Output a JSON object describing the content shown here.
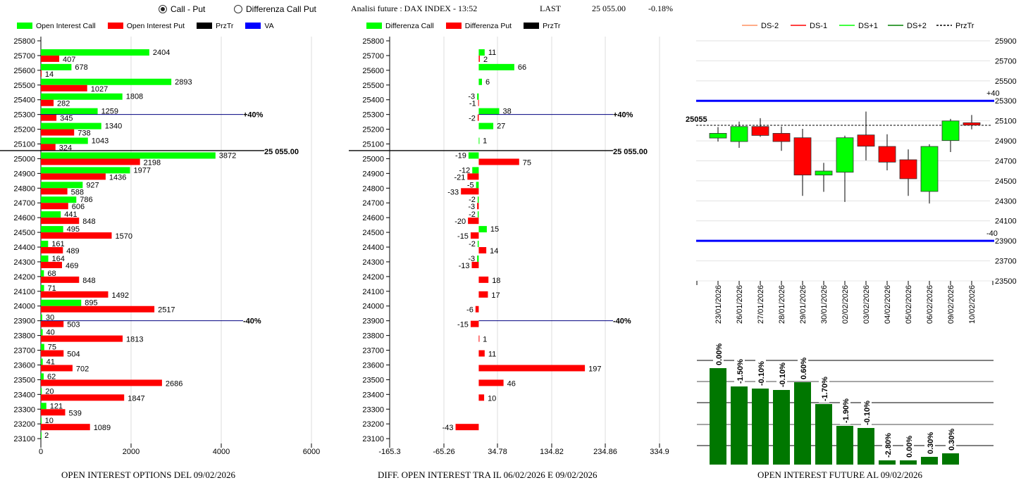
{
  "header": {
    "radio_call_put": "Call - Put",
    "radio_diff": "Differenza Call Put",
    "analysis": "Analisi future : DAX INDEX - 13:52",
    "last_label": "LAST",
    "last_value": "25 055.00",
    "change": "-0.18%"
  },
  "colors": {
    "call": "#00ff00",
    "put": "#ff0000",
    "przTr": "#000000",
    "va": "#0000ff",
    "future_bar": "#007700",
    "ds2": "#ff9060",
    "ds1": "#ff0000",
    "dsp1": "#00ff00",
    "dsp2": "#008000"
  },
  "legend_left": [
    "Open Interest Call",
    "Open Interest Put",
    "PrzTr",
    "VA"
  ],
  "legend_mid": [
    "Differenza Call",
    "Differenza Put",
    "PrzTr"
  ],
  "legend_right": [
    "DS-2",
    "DS-1",
    "DS+1",
    "DS+2",
    "PrzTr"
  ],
  "chart_data": [
    {
      "type": "bar",
      "orientation": "horizontal",
      "title": "OPEN INTEREST OPTIONS DEL 09/02/2026",
      "strikes": [
        25800,
        25700,
        25600,
        25500,
        25400,
        25300,
        25200,
        25100,
        25000,
        24900,
        24800,
        24700,
        24600,
        24500,
        24400,
        24300,
        24200,
        24100,
        24000,
        23900,
        23800,
        23700,
        23600,
        23500,
        23400,
        23300,
        23200,
        23100
      ],
      "series": [
        {
          "name": "Open Interest Call",
          "values": [
            null,
            2404,
            678,
            2893,
            1808,
            1259,
            1340,
            1043,
            3872,
            1977,
            927,
            786,
            441,
            495,
            161,
            164,
            68,
            71,
            895,
            30,
            40,
            75,
            41,
            62,
            20,
            121,
            10,
            2
          ]
        },
        {
          "name": "Open Interest Put",
          "values": [
            null,
            407,
            14,
            1027,
            282,
            345,
            738,
            324,
            2198,
            1436,
            588,
            606,
            848,
            1570,
            489,
            469,
            848,
            1492,
            2517,
            503,
            1813,
            504,
            702,
            2686,
            1847,
            539,
            1089,
            null
          ]
        }
      ],
      "xticks": [
        "0",
        "2000",
        "4000",
        "6000"
      ],
      "xlim": [
        0,
        6500
      ],
      "przTr": {
        "value": 25055,
        "label": "25 055.00"
      },
      "va_upper": {
        "strike": 25300,
        "label": "+40%"
      },
      "va_lower": {
        "strike": 23900,
        "label": "-40%"
      }
    },
    {
      "type": "bar",
      "orientation": "horizontal",
      "title": "DIFF. OPEN INTEREST TRA IL 06/02/2026 E 09/02/2026",
      "strikes": [
        25800,
        25700,
        25600,
        25500,
        25400,
        25300,
        25200,
        25100,
        25000,
        24900,
        24800,
        24700,
        24600,
        24500,
        24400,
        24300,
        24200,
        24100,
        24000,
        23900,
        23800,
        23700,
        23600,
        23500,
        23400,
        23300,
        23200,
        23100
      ],
      "series": [
        {
          "name": "Differenza Call",
          "values": [
            null,
            11,
            66,
            6,
            -3,
            38,
            27,
            1,
            -19,
            -12,
            -5,
            -2,
            -2,
            15,
            -2,
            -3,
            null,
            null,
            null,
            null,
            null,
            null,
            null,
            null,
            null,
            null,
            null,
            null
          ]
        },
        {
          "name": "Differenza Put",
          "values": [
            null,
            2,
            null,
            null,
            -1,
            -2,
            null,
            null,
            75,
            -21,
            -33,
            -3,
            -20,
            -15,
            14,
            -13,
            18,
            17,
            -6,
            -15,
            1,
            11,
            197,
            46,
            10,
            null,
            -43,
            null
          ]
        }
      ],
      "xticks": [
        "-165.3",
        "-65.26",
        "34.78",
        "134.82",
        "234.86",
        "334.9"
      ],
      "xlim": [
        -165.3,
        334.9
      ],
      "przTr": {
        "value": 25055,
        "label": "25 055.00"
      },
      "va_upper": {
        "strike": 25300,
        "label": "+40%"
      },
      "va_lower": {
        "strike": 23900,
        "label": "-40%"
      }
    },
    {
      "type": "candlestick",
      "dates": [
        "23/01/2026",
        "26/01/2026",
        "27/01/2026",
        "28/01/2026",
        "29/01/2026",
        "30/01/2026",
        "02/02/2026",
        "03/02/2026",
        "04/02/2026",
        "05/02/2026",
        "06/02/2026",
        "09/02/2026",
        "10/02/2026"
      ],
      "open": [
        24928,
        24893,
        25043,
        24975,
        24931,
        24558,
        24586,
        24959,
        24844,
        24711,
        24394,
        24903,
        25081
      ],
      "high": [
        25038,
        25092,
        25127,
        25043,
        25020,
        24680,
        24952,
        25193,
        24966,
        24814,
        24865,
        25120,
        25158
      ],
      "low": [
        24893,
        24830,
        24940,
        24800,
        24350,
        24390,
        24289,
        24704,
        24605,
        24350,
        24273,
        24788,
        25015
      ],
      "close": [
        24975,
        25043,
        24954,
        24893,
        24558,
        24598,
        24931,
        24846,
        24687,
        24521,
        24844,
        25099,
        25057
      ],
      "yticks": [
        "25900",
        "25700",
        "25500",
        "25300",
        "25100",
        "24900",
        "24700",
        "24500",
        "24300",
        "24100",
        "23900",
        "23700",
        "23500"
      ],
      "ylim": [
        23500,
        25900
      ],
      "przTr": {
        "value": 25055,
        "label": "25055"
      },
      "upper": {
        "value": 25300,
        "label": "+40"
      },
      "lower": {
        "value": 23900,
        "label": "-40"
      }
    },
    {
      "type": "bar",
      "title": "OPEN INTEREST FUTURE AL 09/02/2026",
      "relative_values": [
        137,
        111,
        108,
        106,
        117,
        86,
        55,
        52,
        6,
        6,
        11,
        16
      ],
      "labels": [
        "0.00%",
        "-1.50%",
        "-0.10%",
        "-0.10%",
        "0.60%",
        "-1.70%",
        "-1.90%",
        "-0.10%",
        "-2.80%",
        "0.00%",
        "0.30%",
        "0.30%"
      ]
    }
  ]
}
